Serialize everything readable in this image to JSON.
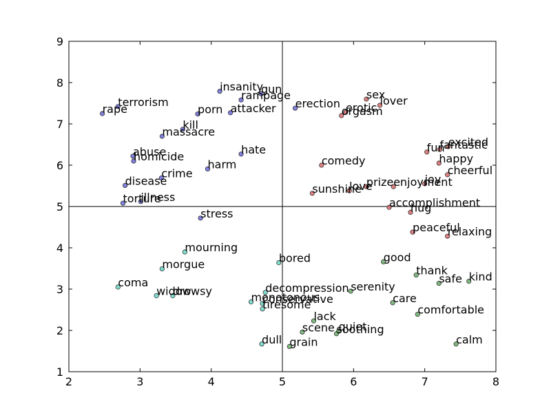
{
  "chart_data": {
    "type": "scatter",
    "xlim": [
      2,
      8
    ],
    "ylim": [
      1,
      9
    ],
    "x_ticks": [
      2,
      3,
      4,
      5,
      6,
      7,
      8
    ],
    "y_ticks": [
      1,
      2,
      3,
      4,
      5,
      6,
      7,
      8,
      9
    ],
    "reference_lines": {
      "x": 5,
      "y": 5
    },
    "grid": false,
    "colors": {
      "blue": "#6a6ad8",
      "red": "#d86a6a",
      "cyan": "#6ad8c8",
      "green": "#6aad6a"
    },
    "points": [
      {
        "label": "rape",
        "x": 2.47,
        "y": 7.25,
        "color": "blue"
      },
      {
        "label": "terrorism",
        "x": 2.69,
        "y": 7.42,
        "color": "blue"
      },
      {
        "label": "insanity",
        "x": 4.12,
        "y": 7.79,
        "color": "blue"
      },
      {
        "label": "gun",
        "x": 4.7,
        "y": 7.73,
        "color": "blue"
      },
      {
        "label": "rampage",
        "x": 4.42,
        "y": 7.58,
        "color": "blue"
      },
      {
        "label": "porn",
        "x": 3.81,
        "y": 7.24,
        "color": "blue"
      },
      {
        "label": "attacker",
        "x": 4.27,
        "y": 7.27,
        "color": "blue"
      },
      {
        "label": "kill",
        "x": 3.6,
        "y": 6.87,
        "color": "blue"
      },
      {
        "label": "massacre",
        "x": 3.31,
        "y": 6.7,
        "color": "blue"
      },
      {
        "label": "abuse",
        "x": 2.9,
        "y": 6.22,
        "color": "blue"
      },
      {
        "label": "homicide",
        "x": 2.91,
        "y": 6.1,
        "color": "blue"
      },
      {
        "label": "hate",
        "x": 4.42,
        "y": 6.27,
        "color": "blue"
      },
      {
        "label": "harm",
        "x": 3.95,
        "y": 5.91,
        "color": "blue"
      },
      {
        "label": "crime",
        "x": 3.3,
        "y": 5.69,
        "color": "blue"
      },
      {
        "label": "disease",
        "x": 2.79,
        "y": 5.51,
        "color": "blue"
      },
      {
        "label": "torture",
        "x": 2.76,
        "y": 5.08,
        "color": "blue"
      },
      {
        "label": "illness",
        "x": 3.01,
        "y": 5.12,
        "color": "blue"
      },
      {
        "label": "stress",
        "x": 3.85,
        "y": 4.72,
        "color": "blue"
      },
      {
        "label": "erection",
        "x": 5.18,
        "y": 7.38,
        "color": "blue"
      },
      {
        "label": "sex",
        "x": 6.18,
        "y": 7.6,
        "color": "red"
      },
      {
        "label": "lover",
        "x": 6.37,
        "y": 7.45,
        "color": "red"
      },
      {
        "label": "erotic",
        "x": 5.89,
        "y": 7.28,
        "color": "red"
      },
      {
        "label": "orgasm",
        "x": 5.83,
        "y": 7.2,
        "color": "red"
      },
      {
        "label": "excited",
        "x": 7.33,
        "y": 6.45,
        "color": "red"
      },
      {
        "label": "fantastic",
        "x": 7.21,
        "y": 6.38,
        "color": "red"
      },
      {
        "label": "fun",
        "x": 7.03,
        "y": 6.32,
        "color": "red"
      },
      {
        "label": "happy",
        "x": 7.2,
        "y": 6.05,
        "color": "red"
      },
      {
        "label": "comedy",
        "x": 5.55,
        "y": 6.0,
        "color": "red"
      },
      {
        "label": "cheerful",
        "x": 7.32,
        "y": 5.77,
        "color": "red"
      },
      {
        "label": "joy",
        "x": 7.0,
        "y": 5.55,
        "color": "red"
      },
      {
        "label": "enjoyment",
        "x": 6.56,
        "y": 5.48,
        "color": "red"
      },
      {
        "label": "prize",
        "x": 6.18,
        "y": 5.48,
        "color": "red"
      },
      {
        "label": "love",
        "x": 5.94,
        "y": 5.38,
        "color": "red"
      },
      {
        "label": "sunshine",
        "x": 5.42,
        "y": 5.32,
        "color": "red"
      },
      {
        "label": "accomplishment",
        "x": 6.5,
        "y": 4.98,
        "color": "red"
      },
      {
        "label": "hug",
        "x": 6.8,
        "y": 4.86,
        "color": "red"
      },
      {
        "label": "peaceful",
        "x": 6.83,
        "y": 4.38,
        "color": "red"
      },
      {
        "label": "relaxing",
        "x": 7.32,
        "y": 4.28,
        "color": "red"
      },
      {
        "label": "mourning",
        "x": 3.63,
        "y": 3.9,
        "color": "cyan"
      },
      {
        "label": "bored",
        "x": 4.95,
        "y": 3.64,
        "color": "cyan"
      },
      {
        "label": "morgue",
        "x": 3.31,
        "y": 3.49,
        "color": "cyan"
      },
      {
        "label": "coma",
        "x": 2.69,
        "y": 3.05,
        "color": "cyan"
      },
      {
        "label": "widow",
        "x": 3.23,
        "y": 2.84,
        "color": "cyan"
      },
      {
        "label": "drowsy",
        "x": 3.46,
        "y": 2.84,
        "color": "cyan"
      },
      {
        "label": "decompression",
        "x": 4.76,
        "y": 2.92,
        "color": "cyan"
      },
      {
        "label": "monotonous",
        "x": 4.56,
        "y": 2.69,
        "color": "cyan"
      },
      {
        "label": "conservative",
        "x": 4.72,
        "y": 2.65,
        "color": "cyan"
      },
      {
        "label": "tiresome",
        "x": 4.72,
        "y": 2.52,
        "color": "cyan"
      },
      {
        "label": "dull",
        "x": 4.71,
        "y": 1.67,
        "color": "cyan"
      },
      {
        "label": "good",
        "x": 6.42,
        "y": 3.66,
        "color": "green"
      },
      {
        "label": "thank",
        "x": 6.88,
        "y": 3.34,
        "color": "green"
      },
      {
        "label": "safe",
        "x": 7.2,
        "y": 3.14,
        "color": "green"
      },
      {
        "label": "kind",
        "x": 7.62,
        "y": 3.19,
        "color": "green"
      },
      {
        "label": "serenity",
        "x": 5.96,
        "y": 2.95,
        "color": "green"
      },
      {
        "label": "care",
        "x": 6.55,
        "y": 2.67,
        "color": "green"
      },
      {
        "label": "comfortable",
        "x": 6.9,
        "y": 2.39,
        "color": "green"
      },
      {
        "label": "lack",
        "x": 5.44,
        "y": 2.23,
        "color": "green"
      },
      {
        "label": "scene",
        "x": 5.28,
        "y": 1.96,
        "color": "green"
      },
      {
        "label": "quiet",
        "x": 5.79,
        "y": 1.98,
        "color": "green"
      },
      {
        "label": "soothing",
        "x": 5.76,
        "y": 1.92,
        "color": "green"
      },
      {
        "label": "calm",
        "x": 7.44,
        "y": 1.67,
        "color": "green"
      },
      {
        "label": "grain",
        "x": 5.1,
        "y": 1.61,
        "color": "green"
      }
    ]
  }
}
